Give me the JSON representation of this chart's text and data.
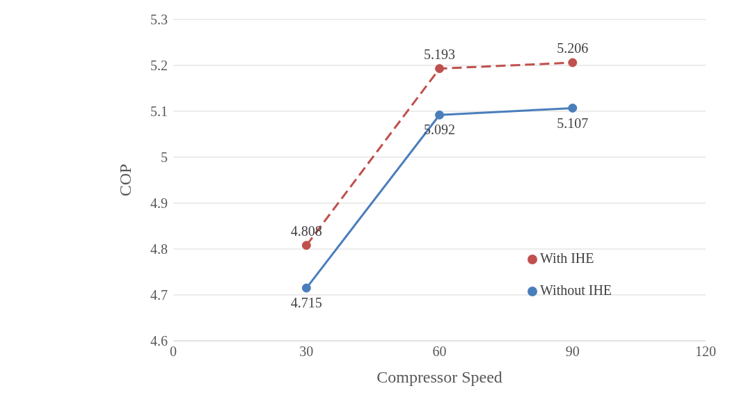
{
  "chart_data": {
    "type": "line",
    "xlabel": "Compressor Speed",
    "ylabel": "COP",
    "x": [
      30,
      60,
      90
    ],
    "series": [
      {
        "name": "Without IHE",
        "color": "#4a7ebb",
        "values": [
          4.715,
          5.092,
          5.107
        ],
        "line_style": "solid"
      },
      {
        "name": "With IHE",
        "color": "#c0504d",
        "values": [
          4.808,
          5.193,
          5.206
        ],
        "line_style": "dashed"
      }
    ],
    "xlim": [
      0,
      120
    ],
    "xticks": [
      0,
      30,
      60,
      90,
      120
    ],
    "ylim": [
      4.6,
      5.3
    ],
    "yticks": [
      4.6,
      4.7,
      4.8,
      4.9,
      5,
      5.1,
      5.2,
      5.3
    ],
    "grid": "y",
    "legend": "right",
    "marker": "circle",
    "data_labels": true
  }
}
